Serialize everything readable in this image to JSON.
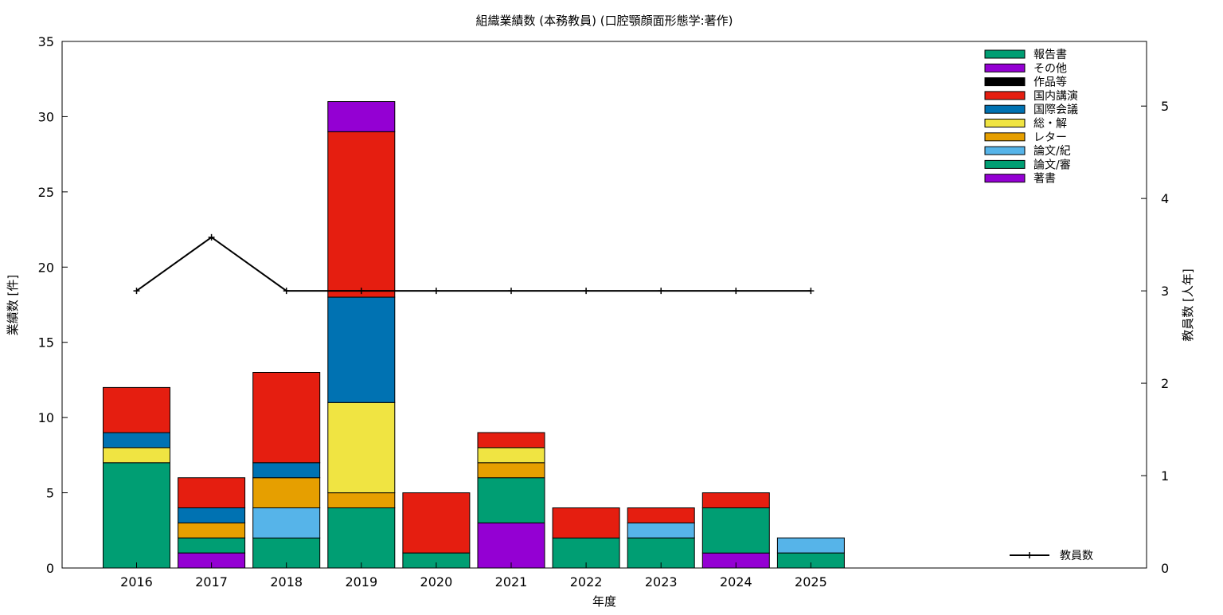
{
  "chart_data": {
    "type": "bar",
    "title": "組織業績数 (本務教員) (口腔顎顔面形態学:著作)",
    "xlabel": "年度",
    "ylabel": "業績数 [件]",
    "y2label": "教員数 [人年]",
    "ylim": [
      0,
      35
    ],
    "y2lim": [
      0,
      5.7
    ],
    "yticks": [
      0,
      5,
      10,
      15,
      20,
      25,
      30,
      35
    ],
    "y2ticks": [
      0,
      1,
      2,
      3,
      4,
      5
    ],
    "categories": [
      "2016",
      "2017",
      "2018",
      "2019",
      "2020",
      "2021",
      "2022",
      "2023",
      "2024",
      "2025"
    ],
    "stacked": true,
    "legend_position": "top-right",
    "series": [
      {
        "name": "著書",
        "color": "#9400d3",
        "values": [
          0,
          1,
          0,
          0,
          0,
          3,
          0,
          0,
          1,
          0
        ]
      },
      {
        "name": "論文/審",
        "color": "#009e73",
        "values": [
          7,
          1,
          2,
          4,
          1,
          3,
          2,
          2,
          3,
          1
        ]
      },
      {
        "name": "論文/紀",
        "color": "#56b4e9",
        "values": [
          0,
          0,
          2,
          0,
          0,
          0,
          0,
          1,
          0,
          1
        ]
      },
      {
        "name": "レター",
        "color": "#e69f00",
        "values": [
          0,
          1,
          2,
          1,
          0,
          1,
          0,
          0,
          0,
          0
        ]
      },
      {
        "name": "総・解",
        "color": "#f0e442",
        "values": [
          1,
          0,
          0,
          6,
          0,
          1,
          0,
          0,
          0,
          0
        ]
      },
      {
        "name": "国際会議",
        "color": "#0072b2",
        "values": [
          1,
          1,
          1,
          7,
          0,
          0,
          0,
          0,
          0,
          0
        ]
      },
      {
        "name": "国内講演",
        "color": "#e51e10",
        "values": [
          3,
          2,
          6,
          11,
          4,
          1,
          2,
          1,
          1,
          0
        ]
      },
      {
        "name": "作品等",
        "color": "#000000",
        "values": [
          0,
          0,
          0,
          0,
          0,
          0,
          0,
          0,
          0,
          0
        ]
      },
      {
        "name": "その他",
        "color": "#9400d3",
        "values": [
          0,
          0,
          0,
          2,
          0,
          0,
          0,
          0,
          0,
          0
        ]
      },
      {
        "name": "報告書",
        "color": "#009e73",
        "values": [
          0,
          0,
          0,
          0,
          0,
          0,
          0,
          0,
          0,
          0
        ]
      }
    ],
    "line_series": {
      "name": "教員数",
      "axis": "right",
      "color": "#000000",
      "values": [
        3,
        3.58,
        3,
        3,
        3,
        3,
        3,
        3,
        3,
        3
      ]
    }
  }
}
